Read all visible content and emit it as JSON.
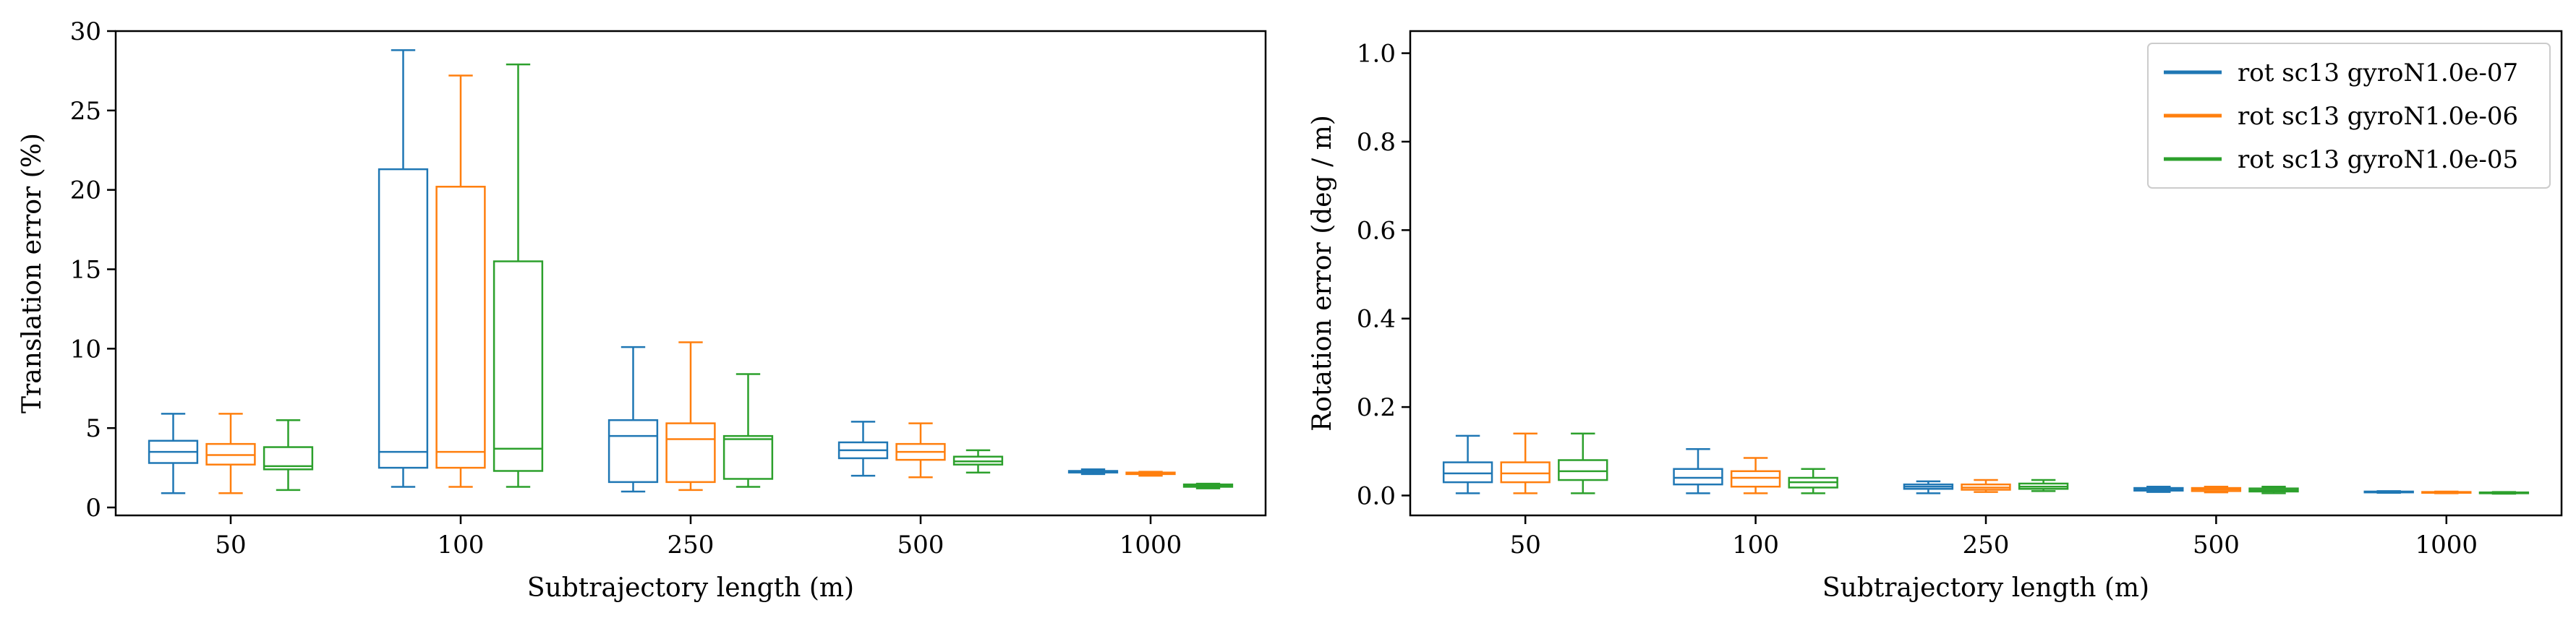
{
  "colors": {
    "series": [
      "#1f77b4",
      "#ff7f0e",
      "#2ca02c"
    ],
    "axis": "#000000",
    "background": "#ffffff",
    "legend_border": "#cccccc"
  },
  "chart_data": [
    {
      "type": "box",
      "xlabel": "Subtrajectory length (m)",
      "ylabel": "Translation error (%)",
      "categories": [
        "50",
        "100",
        "250",
        "500",
        "1000"
      ],
      "ylim": [
        -0.5,
        30
      ],
      "yticks": [
        0,
        5,
        10,
        15,
        20,
        25,
        30
      ],
      "grid": false,
      "legend": null,
      "series": [
        {
          "name": "rot sc13 gyroN1.0e-07",
          "boxes": [
            {
              "whislo": 0.9,
              "q1": 2.8,
              "med": 3.5,
              "q3": 4.2,
              "whishi": 5.9
            },
            {
              "whislo": 1.3,
              "q1": 2.5,
              "med": 3.5,
              "q3": 21.3,
              "whishi": 28.8
            },
            {
              "whislo": 1.0,
              "q1": 1.6,
              "med": 4.5,
              "q3": 5.5,
              "whishi": 10.1
            },
            {
              "whislo": 2.0,
              "q1": 3.1,
              "med": 3.6,
              "q3": 4.1,
              "whishi": 5.4
            },
            {
              "whislo": 2.1,
              "q1": 2.2,
              "med": 2.25,
              "q3": 2.3,
              "whishi": 2.4
            }
          ]
        },
        {
          "name": "rot sc13 gyroN1.0e-06",
          "boxes": [
            {
              "whislo": 0.9,
              "q1": 2.7,
              "med": 3.3,
              "q3": 4.0,
              "whishi": 5.9
            },
            {
              "whislo": 1.3,
              "q1": 2.5,
              "med": 3.5,
              "q3": 20.2,
              "whishi": 27.2
            },
            {
              "whislo": 1.1,
              "q1": 1.6,
              "med": 4.3,
              "q3": 5.3,
              "whishi": 10.4
            },
            {
              "whislo": 1.9,
              "q1": 3.0,
              "med": 3.5,
              "q3": 4.0,
              "whishi": 5.3
            },
            {
              "whislo": 2.0,
              "q1": 2.1,
              "med": 2.15,
              "q3": 2.2,
              "whishi": 2.25
            }
          ]
        },
        {
          "name": "rot sc13 gyroN1.0e-05",
          "boxes": [
            {
              "whislo": 1.1,
              "q1": 2.4,
              "med": 2.6,
              "q3": 3.8,
              "whishi": 5.5
            },
            {
              "whislo": 1.3,
              "q1": 2.3,
              "med": 3.7,
              "q3": 15.5,
              "whishi": 27.9
            },
            {
              "whislo": 1.3,
              "q1": 1.8,
              "med": 4.3,
              "q3": 4.5,
              "whishi": 8.4
            },
            {
              "whislo": 2.2,
              "q1": 2.7,
              "med": 2.9,
              "q3": 3.2,
              "whishi": 3.6
            },
            {
              "whislo": 1.2,
              "q1": 1.3,
              "med": 1.4,
              "q3": 1.45,
              "whishi": 1.5
            }
          ]
        }
      ]
    },
    {
      "type": "box",
      "xlabel": "Subtrajectory length (m)",
      "ylabel": "Rotation error (deg / m)",
      "categories": [
        "50",
        "100",
        "250",
        "500",
        "1000"
      ],
      "ylim": [
        -0.045,
        1.05
      ],
      "yticks": [
        0.0,
        0.2,
        0.4,
        0.6,
        0.8,
        1.0
      ],
      "grid": false,
      "legend": "upper right",
      "series": [
        {
          "name": "rot sc13 gyroN1.0e-07",
          "boxes": [
            {
              "whislo": 0.005,
              "q1": 0.03,
              "med": 0.05,
              "q3": 0.075,
              "whishi": 0.135
            },
            {
              "whislo": 0.005,
              "q1": 0.025,
              "med": 0.04,
              "q3": 0.06,
              "whishi": 0.105
            },
            {
              "whislo": 0.005,
              "q1": 0.015,
              "med": 0.02,
              "q3": 0.025,
              "whishi": 0.032
            },
            {
              "whislo": 0.008,
              "q1": 0.011,
              "med": 0.014,
              "q3": 0.017,
              "whishi": 0.02
            },
            {
              "whislo": 0.006,
              "q1": 0.007,
              "med": 0.008,
              "q3": 0.009,
              "whishi": 0.01
            }
          ]
        },
        {
          "name": "rot sc13 gyroN1.0e-06",
          "boxes": [
            {
              "whislo": 0.005,
              "q1": 0.03,
              "med": 0.05,
              "q3": 0.075,
              "whishi": 0.14
            },
            {
              "whislo": 0.005,
              "q1": 0.02,
              "med": 0.04,
              "q3": 0.055,
              "whishi": 0.085
            },
            {
              "whislo": 0.008,
              "q1": 0.013,
              "med": 0.018,
              "q3": 0.025,
              "whishi": 0.035
            },
            {
              "whislo": 0.007,
              "q1": 0.01,
              "med": 0.014,
              "q3": 0.017,
              "whishi": 0.02
            },
            {
              "whislo": 0.005,
              "q1": 0.006,
              "med": 0.007,
              "q3": 0.008,
              "whishi": 0.009
            }
          ]
        },
        {
          "name": "rot sc13 gyroN1.0e-05",
          "boxes": [
            {
              "whislo": 0.005,
              "q1": 0.035,
              "med": 0.055,
              "q3": 0.08,
              "whishi": 0.14
            },
            {
              "whislo": 0.005,
              "q1": 0.018,
              "med": 0.03,
              "q3": 0.04,
              "whishi": 0.06
            },
            {
              "whislo": 0.01,
              "q1": 0.015,
              "med": 0.02,
              "q3": 0.027,
              "whishi": 0.035
            },
            {
              "whislo": 0.005,
              "q1": 0.009,
              "med": 0.012,
              "q3": 0.016,
              "whishi": 0.02
            },
            {
              "whislo": 0.004,
              "q1": 0.005,
              "med": 0.006,
              "q3": 0.007,
              "whishi": 0.008
            }
          ]
        }
      ]
    }
  ]
}
